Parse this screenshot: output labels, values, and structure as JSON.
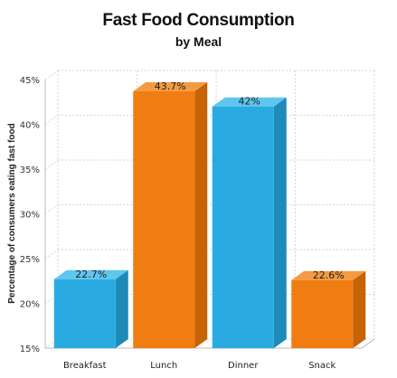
{
  "colors": {
    "blue": "#29abe2",
    "blue_top": "#5fc6ef",
    "blue_side": "#1d8ab8",
    "orange": "#ef7d12",
    "orange_top": "#f59a42",
    "orange_side": "#c56305",
    "grid": "#d6d6d6",
    "axis": "#bbbbbb"
  },
  "chart_data": {
    "type": "bar",
    "title": "Fast Food Consumption",
    "subtitle": "by Meal",
    "ylabel": "Percentage of consumers eating fast food",
    "xlabel": "",
    "categories": [
      "Breakfast",
      "Lunch",
      "Dinner",
      "Snack"
    ],
    "values": [
      22.7,
      43.7,
      42,
      22.6
    ],
    "value_labels": [
      "22.7%",
      "43.7%",
      "42%",
      "22.6%"
    ],
    "bar_colors": [
      "blue",
      "orange",
      "blue",
      "orange"
    ],
    "ylim": [
      15,
      45
    ],
    "yticks": [
      15,
      20,
      25,
      30,
      35,
      40,
      45
    ],
    "ytick_labels": [
      "15%",
      "20%",
      "25%",
      "30%",
      "35%",
      "40%",
      "45%"
    ],
    "grid": true,
    "style": "3d"
  }
}
